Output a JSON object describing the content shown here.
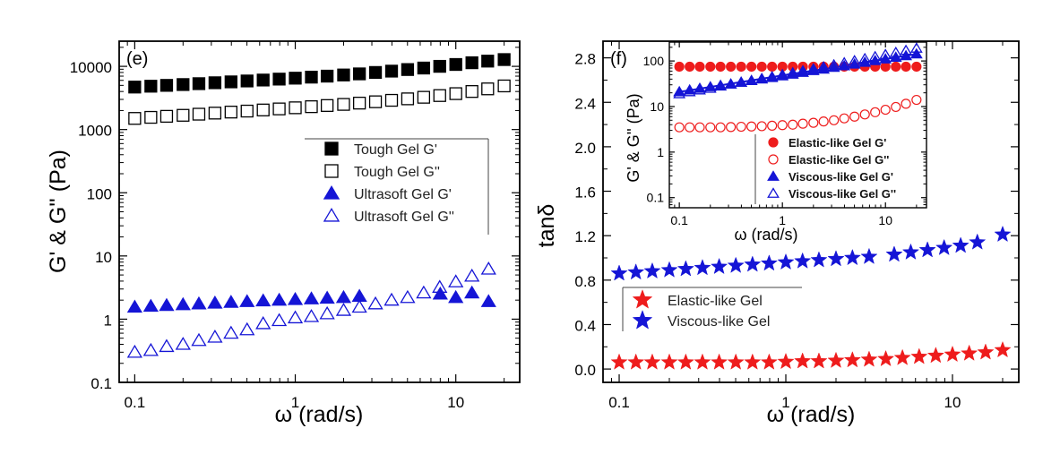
{
  "chart_data": [
    {
      "panel_label": "(e)",
      "type": "scatter",
      "xlabel": "ω (rad/s)",
      "ylabel": "G' & G'' (Pa)",
      "xscale": "log",
      "yscale": "log",
      "xlim": [
        0.08,
        25
      ],
      "ylim": [
        0.1,
        25000
      ],
      "x_ticks": [
        "0.1",
        "1",
        "10"
      ],
      "y_ticks": [
        "0.1",
        "1",
        "10",
        "100",
        "1000",
        "10000"
      ],
      "legend_position": "center-right",
      "series": [
        {
          "name": "Tough Gel G'",
          "marker": "square-filled",
          "color": "#000000",
          "x": [
            0.1,
            0.126,
            0.158,
            0.2,
            0.251,
            0.316,
            0.398,
            0.501,
            0.631,
            0.794,
            1,
            1.26,
            1.58,
            2,
            2.51,
            3.16,
            3.98,
            5.01,
            6.31,
            7.94,
            10,
            12.6,
            15.8,
            20
          ],
          "y": [
            4700,
            4850,
            5000,
            5150,
            5320,
            5500,
            5680,
            5870,
            6070,
            6280,
            6500,
            6750,
            7000,
            7300,
            7600,
            8000,
            8400,
            8900,
            9400,
            10000,
            10700,
            11400,
            12100,
            12800
          ]
        },
        {
          "name": "Tough Gel G''",
          "marker": "square-open",
          "color": "#000000",
          "x": [
            0.1,
            0.126,
            0.158,
            0.2,
            0.251,
            0.316,
            0.398,
            0.501,
            0.631,
            0.794,
            1,
            1.26,
            1.58,
            2,
            2.51,
            3.16,
            3.98,
            5.01,
            6.31,
            7.94,
            10,
            12.6,
            15.8,
            20
          ],
          "y": [
            1500,
            1560,
            1620,
            1680,
            1750,
            1820,
            1890,
            1960,
            2040,
            2120,
            2210,
            2300,
            2400,
            2500,
            2620,
            2750,
            2900,
            3060,
            3240,
            3450,
            3700,
            4000,
            4400,
            4900
          ]
        },
        {
          "name": "Ultrasoft Gel G'",
          "marker": "triangle-filled",
          "color": "#1515d6",
          "x": [
            0.1,
            0.126,
            0.158,
            0.2,
            0.251,
            0.316,
            0.398,
            0.501,
            0.631,
            0.794,
            1,
            1.26,
            1.58,
            2,
            2.51,
            8,
            10,
            12.6,
            16
          ],
          "y": [
            1.55,
            1.6,
            1.65,
            1.7,
            1.75,
            1.8,
            1.85,
            1.9,
            1.95,
            2.0,
            2.05,
            2.1,
            2.15,
            2.2,
            2.3,
            2.5,
            2.2,
            2.6,
            1.9
          ]
        },
        {
          "name": "Ultrasoft Gel G''",
          "marker": "triangle-open",
          "color": "#1515d6",
          "x": [
            0.1,
            0.126,
            0.158,
            0.2,
            0.251,
            0.316,
            0.398,
            0.501,
            0.631,
            0.794,
            1,
            1.26,
            1.58,
            2,
            2.51,
            3.16,
            3.98,
            5.01,
            6.31,
            7.94,
            10,
            12.6,
            16
          ],
          "y": [
            0.3,
            0.32,
            0.37,
            0.4,
            0.46,
            0.52,
            0.6,
            0.68,
            0.85,
            0.95,
            1.05,
            1.1,
            1.22,
            1.38,
            1.55,
            1.75,
            2.0,
            2.2,
            2.6,
            3.2,
            3.9,
            4.8,
            6.2
          ]
        }
      ]
    },
    {
      "panel_label": "(f)",
      "type": "scatter",
      "xlabel": "ω (rad/s)",
      "ylabel": "tanδ",
      "xscale": "log",
      "yscale": "linear",
      "xlim": [
        0.08,
        25
      ],
      "ylim": [
        -0.12,
        2.95
      ],
      "x_ticks": [
        "0.1",
        "1",
        "10"
      ],
      "y_ticks": [
        "0.0",
        "0.4",
        "0.8",
        "1.2",
        "1.6",
        "2.0",
        "2.4",
        "2.8"
      ],
      "legend_position": "lower-left",
      "series": [
        {
          "name": "Elastic-like Gel",
          "marker": "star-filled",
          "color": "#ee1c1c",
          "x": [
            0.1,
            0.126,
            0.158,
            0.2,
            0.251,
            0.316,
            0.398,
            0.501,
            0.631,
            0.794,
            1,
            1.26,
            1.58,
            2,
            2.51,
            3.16,
            3.98,
            5.01,
            6.31,
            7.94,
            10,
            12.6,
            15.8,
            20
          ],
          "y": [
            0.06,
            0.06,
            0.06,
            0.06,
            0.06,
            0.06,
            0.06,
            0.06,
            0.06,
            0.06,
            0.065,
            0.07,
            0.07,
            0.075,
            0.08,
            0.085,
            0.09,
            0.1,
            0.11,
            0.12,
            0.13,
            0.14,
            0.15,
            0.17
          ]
        },
        {
          "name": "Viscous-like Gel",
          "marker": "star-filled",
          "color": "#1515d6",
          "x": [
            0.1,
            0.126,
            0.158,
            0.2,
            0.251,
            0.316,
            0.398,
            0.501,
            0.631,
            0.794,
            1,
            1.26,
            1.58,
            2,
            2.51,
            3.16,
            4.47,
            5.62,
            7.08,
            8.91,
            11.2,
            14.1,
            20
          ],
          "y": [
            0.86,
            0.87,
            0.88,
            0.89,
            0.9,
            0.91,
            0.92,
            0.93,
            0.94,
            0.95,
            0.96,
            0.97,
            0.98,
            0.99,
            1.0,
            1.01,
            1.03,
            1.05,
            1.07,
            1.09,
            1.11,
            1.14,
            1.21
          ]
        }
      ],
      "inset": {
        "type": "scatter",
        "xlabel": "ω (rad/s)",
        "ylabel": "G' & G'' (Pa)",
        "xscale": "log",
        "yscale": "log",
        "xlim": [
          0.08,
          25
        ],
        "ylim": [
          0.06,
          260
        ],
        "x_ticks": [
          "0.1",
          "1",
          "10"
        ],
        "y_ticks": [
          "0.1",
          "1",
          "10",
          "100"
        ],
        "series": [
          {
            "name": "Elastic-like Gel G'",
            "marker": "circle-filled",
            "color": "#ee1c1c",
            "x": [
              0.1,
              0.126,
              0.158,
              0.2,
              0.251,
              0.316,
              0.398,
              0.501,
              0.631,
              0.794,
              1,
              1.26,
              1.58,
              2,
              2.51,
              3.16,
              3.98,
              5.01,
              6.31,
              7.94,
              10,
              12.6,
              15.8,
              20
            ],
            "y": [
              75,
              75,
              75,
              75,
              75,
              75,
              75,
              75,
              75,
              75,
              75,
              75,
              75,
              75,
              75,
              75,
              75,
              75,
              75,
              75,
              75,
              75,
              75,
              75
            ]
          },
          {
            "name": "Elastic-like Gel G''",
            "marker": "circle-open",
            "color": "#ee1c1c",
            "x": [
              0.1,
              0.126,
              0.158,
              0.2,
              0.251,
              0.316,
              0.398,
              0.501,
              0.631,
              0.794,
              1,
              1.26,
              1.58,
              2,
              2.51,
              3.16,
              3.98,
              5.01,
              6.31,
              7.94,
              10,
              12.6,
              15.8,
              20
            ],
            "y": [
              3.5,
              3.5,
              3.5,
              3.5,
              3.5,
              3.55,
              3.6,
              3.65,
              3.7,
              3.8,
              3.9,
              4.0,
              4.2,
              4.4,
              4.7,
              5.0,
              5.5,
              6.0,
              6.7,
              7.5,
              8.5,
              9.8,
              11.5,
              14
            ]
          },
          {
            "name": "Viscous-like Gel G'",
            "marker": "triangle-filled",
            "color": "#1515d6",
            "x": [
              0.1,
              0.126,
              0.158,
              0.2,
              0.251,
              0.316,
              0.398,
              0.501,
              0.631,
              0.794,
              1,
              1.26,
              1.58,
              2,
              2.51,
              3.16,
              3.98,
              5.01,
              6.31,
              7.94,
              10,
              12.6,
              15.8,
              20
            ],
            "y": [
              21,
              23,
              25,
              27,
              29,
              31,
              34,
              37,
              40,
              43,
              47,
              51,
              56,
              61,
              66,
              72,
              78,
              85,
              93,
              101,
              110,
              120,
              130,
              142
            ]
          },
          {
            "name": "Viscous-like Gel G''",
            "marker": "triangle-open",
            "color": "#1515d6",
            "x": [
              0.1,
              0.126,
              0.158,
              0.2,
              0.251,
              0.316,
              0.398,
              0.501,
              0.631,
              0.794,
              1,
              1.26,
              1.58,
              2,
              2.51,
              3.16,
              3.98,
              5.01,
              6.31,
              7.94,
              10,
              12.6,
              15.8,
              20
            ],
            "y": [
              19,
              21,
              23,
              25,
              28,
              31,
              34,
              37,
              41,
              45,
              50,
              55,
              61,
              67,
              74,
              82,
              91,
              101,
              112,
              124,
              138,
              153,
              170,
              190
            ]
          }
        ]
      }
    }
  ]
}
